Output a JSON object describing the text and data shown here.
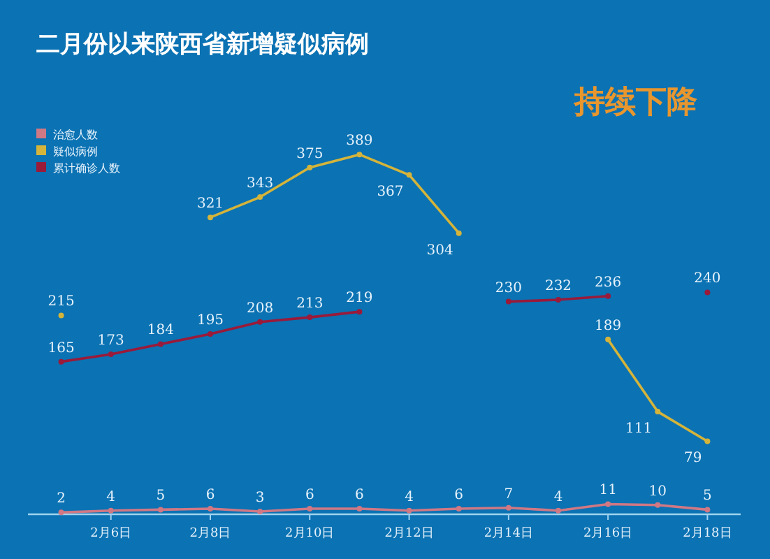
{
  "chart_data": {
    "type": "line",
    "title": "二月份以来陕西省新增疑似病例",
    "annotations": [
      "持续下降"
    ],
    "categories": [
      null,
      "2月6日",
      null,
      "2月8日",
      null,
      "2月10日",
      null,
      "2月12日",
      null,
      "2月14日",
      null,
      "2月16日",
      null,
      "2月18日"
    ],
    "series": [
      {
        "name": "治愈人数",
        "color": "#d07884",
        "values": [
          2,
          4,
          5,
          6,
          3,
          6,
          6,
          4,
          6,
          7,
          4,
          11,
          10,
          5
        ]
      },
      {
        "name": "疑似病例",
        "color": "#d4b43a",
        "values": [
          215,
          null,
          null,
          321,
          343,
          375,
          389,
          367,
          304,
          null,
          null,
          189,
          111,
          79
        ]
      },
      {
        "name": "累计确诊人数",
        "color": "#9a1a3a",
        "values": [
          165,
          173,
          184,
          195,
          208,
          213,
          219,
          null,
          null,
          230,
          232,
          236,
          null,
          240
        ]
      }
    ],
    "data_labels": true,
    "legend": "top left",
    "marker": "circle"
  }
}
